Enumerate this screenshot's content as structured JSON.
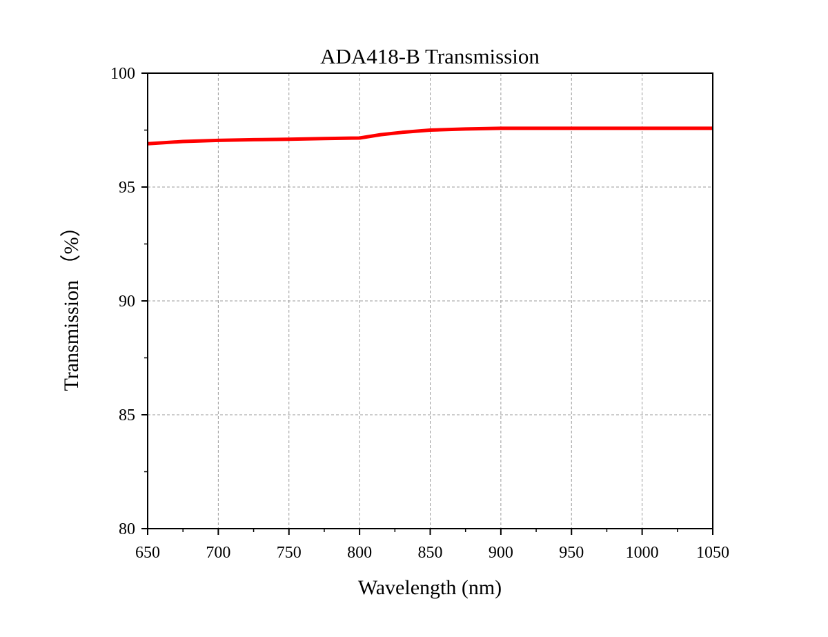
{
  "chart_data": {
    "type": "line",
    "title": "ADA418-B Transmission",
    "xlabel": "Wavelength (nm)",
    "ylabel": "Transmission （%）",
    "xlim": [
      650,
      1050
    ],
    "ylim": [
      80,
      100
    ],
    "x_ticks": [
      "650",
      "700",
      "750",
      "800",
      "850",
      "900",
      "950",
      "1000",
      "1050"
    ],
    "y_ticks": [
      "80",
      "85",
      "90",
      "95",
      "100"
    ],
    "grid": true,
    "series": [
      {
        "color": "#ff0000",
        "x": [
          650,
          675,
          700,
          725,
          750,
          775,
          800,
          805,
          815,
          830,
          850,
          875,
          900,
          950,
          1000,
          1050
        ],
        "y": [
          96.9,
          97.0,
          97.05,
          97.08,
          97.1,
          97.13,
          97.15,
          97.2,
          97.3,
          97.4,
          97.5,
          97.55,
          97.58,
          97.58,
          97.58,
          97.58
        ]
      }
    ]
  }
}
